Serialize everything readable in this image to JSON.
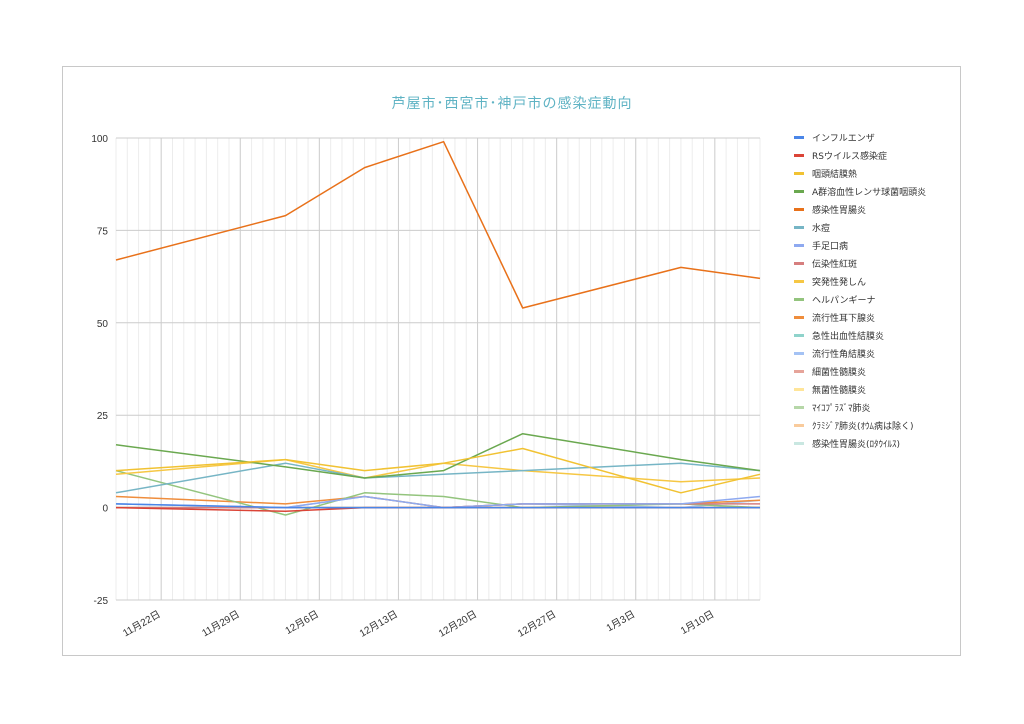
{
  "chart_data": {
    "type": "line",
    "title": "芦屋市･西宮市･神戸市の感染症動向",
    "ylim": [
      -25,
      100
    ],
    "yticks": [
      100,
      75,
      50,
      25,
      0,
      -25
    ],
    "x_range": [
      "2023-11-18",
      "2024-01-14"
    ],
    "xticks": [
      {
        "label": "11月22日",
        "date": "2023-11-22"
      },
      {
        "label": "11月29日",
        "date": "2023-11-29"
      },
      {
        "label": "12月6日",
        "date": "2023-12-06"
      },
      {
        "label": "12月13日",
        "date": "2023-12-13"
      },
      {
        "label": "12月20日",
        "date": "2023-12-20"
      },
      {
        "label": "12月27日",
        "date": "2023-12-27"
      },
      {
        "label": "1月3日",
        "date": "2024-01-03"
      },
      {
        "label": "1月10日",
        "date": "2024-01-10"
      }
    ],
    "x": [
      "2023-11-18",
      "2023-12-03",
      "2023-12-10",
      "2023-12-17",
      "2023-12-24",
      "2024-01-07",
      "2024-01-14"
    ],
    "grid": true,
    "legend_position": "right",
    "series": [
      {
        "name": "インフルエンザ",
        "color": "#4a86e8",
        "values": [
          1,
          0,
          0,
          0,
          0,
          0,
          0
        ]
      },
      {
        "name": "RSウイルス感染症",
        "color": "#db4437",
        "values": [
          0,
          -1,
          0,
          0,
          0,
          0,
          0
        ]
      },
      {
        "name": "咽頭結膜熱",
        "color": "#f1c232",
        "values": [
          10,
          13,
          10,
          12,
          16,
          4,
          9
        ]
      },
      {
        "name": "A群溶血性レンサ球菌咽頭炎",
        "color": "#6aa84f",
        "values": [
          17,
          11,
          8,
          10,
          20,
          13,
          10
        ]
      },
      {
        "name": "感染性胃腸炎",
        "color": "#e8711a",
        "values": [
          67,
          79,
          92,
          99,
          54,
          65,
          62
        ]
      },
      {
        "name": "水痘",
        "color": "#76b5c5",
        "values": [
          4,
          12,
          8,
          9,
          10,
          12,
          10
        ]
      },
      {
        "name": "手足口病",
        "color": "#8ea9f0",
        "values": [
          1,
          0,
          3,
          0,
          1,
          1,
          3
        ]
      },
      {
        "name": "伝染性紅斑",
        "color": "#d67e7e",
        "values": [
          0,
          0,
          0,
          0,
          1,
          1,
          1
        ]
      },
      {
        "name": "突発性発しん",
        "color": "#f6c744",
        "values": [
          9,
          13,
          8,
          12,
          10,
          7,
          8
        ]
      },
      {
        "name": "ヘルパンギーナ",
        "color": "#93c47d",
        "values": [
          10,
          -2,
          4,
          3,
          0,
          1,
          0
        ]
      },
      {
        "name": "流行性耳下腺炎",
        "color": "#ef8d3c",
        "values": [
          3,
          1,
          3,
          0,
          1,
          1,
          2
        ]
      },
      {
        "name": "急性出血性結膜炎",
        "color": "#8fd3cb",
        "values": [
          0,
          0,
          0,
          0,
          0,
          0,
          0
        ]
      },
      {
        "name": "流行性角結膜炎",
        "color": "#a4c2f4",
        "values": [
          0,
          0,
          3,
          0,
          1,
          0,
          2
        ]
      },
      {
        "name": "細菌性髄膜炎",
        "color": "#e6a49a",
        "values": [
          0,
          0,
          0,
          0,
          0,
          0,
          0
        ]
      },
      {
        "name": "無菌性髄膜炎",
        "color": "#ffe599",
        "values": [
          0,
          0,
          0,
          0,
          0,
          0,
          0
        ]
      },
      {
        "name": "ﾏｲｺﾌﾟﾗｽﾞﾏ肺炎",
        "color": "#b6d7a8",
        "values": [
          0,
          0,
          0,
          0,
          0,
          0,
          0
        ]
      },
      {
        "name": "ｸﾗﾐｼﾞｱ肺炎(ｵｳﾑ病は除く)",
        "color": "#f9cb9c",
        "values": [
          0,
          0,
          0,
          0,
          0,
          0,
          0
        ]
      },
      {
        "name": "感染性胃腸炎(ﾛﾀｳｲﾙｽ)",
        "color": "#c9e7e1",
        "values": [
          0,
          0,
          0,
          0,
          0,
          0,
          0
        ]
      }
    ]
  }
}
